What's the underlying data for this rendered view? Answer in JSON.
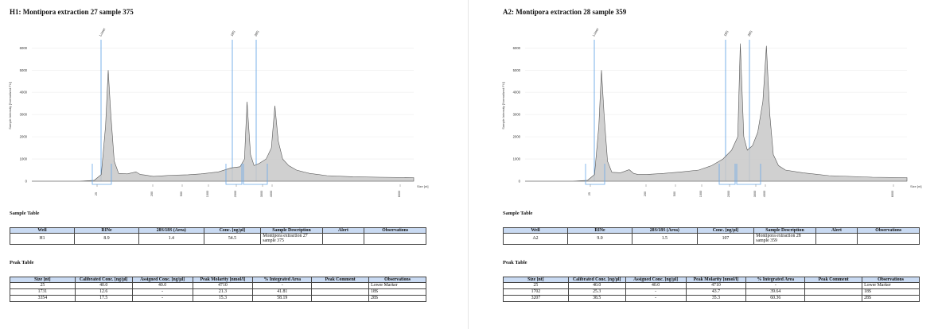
{
  "panels": [
    {
      "title": "H1: Montipora extraction 27 sample 375",
      "sample_table_title": "Sample Table",
      "sample_headers": [
        "Well",
        "RINe",
        "28S/18S (Area)",
        "Conc. [ng/µl]",
        "Sample Description",
        "Alert",
        "Observations"
      ],
      "sample_row": [
        "H1",
        "8.9",
        "1.4",
        "54.5",
        "Montipora extraction 27 sample 375",
        "",
        ""
      ],
      "peak_table_title": "Peak Table",
      "peak_headers": [
        "Size [nt]",
        "Calibrated Conc. [ng/µl]",
        "Assigned Conc. [ng/µl]",
        "Peak Molarity [nmol/l]",
        "% Integrated Area",
        "Peak Comment",
        "Observations"
      ],
      "peak_rows": [
        [
          "25",
          "40.0",
          "40.0",
          "4710",
          "-",
          "",
          "Lower Marker"
        ],
        [
          "1731",
          "12.6",
          "-",
          "21.3",
          "41.81",
          "",
          "18S"
        ],
        [
          "3354",
          "17.5",
          "-",
          "15.3",
          "58.19",
          "",
          "28S"
        ]
      ]
    },
    {
      "title": "A2: Montipora extraction 28 sample 359",
      "sample_table_title": "Sample Table",
      "sample_headers": [
        "Well",
        "RINe",
        "28S/18S (Area)",
        "Conc. [ng/µl]",
        "Sample Description",
        "Alert",
        "Observations"
      ],
      "sample_row": [
        "A2",
        "9.0",
        "1.5",
        "107",
        "Montipora extraction 28 sample 359",
        "",
        ""
      ],
      "peak_table_title": "Peak Table",
      "peak_headers": [
        "Size [nt]",
        "Calibrated Conc. [ng/µl]",
        "Assigned Conc. [ng/µl]",
        "Peak Molarity [nmol/l]",
        "% Integrated Area",
        "Peak Comment",
        "Observations"
      ],
      "peak_rows": [
        [
          "25",
          "40.0",
          "40.0",
          "4710",
          "-",
          "",
          "Lower Marker"
        ],
        [
          "1702",
          "25.3",
          "-",
          "43.7",
          "39.64",
          "",
          "18S"
        ],
        [
          "3207",
          "38.5",
          "-",
          "35.3",
          "60.36",
          "",
          "28S"
        ]
      ]
    }
  ],
  "chart_data": [
    {
      "type": "area",
      "ylabel": "Sample Intensity [Normalized FU]",
      "xlabel": "Size [nt]",
      "ylim": [
        0,
        6800
      ],
      "yticks": [
        "0",
        "1000",
        "2000",
        "3000",
        "4000",
        "5000",
        "6000"
      ],
      "x_ticks": [
        "25",
        "200",
        "500",
        "1000",
        "2000",
        "3000",
        "4000",
        "6000"
      ],
      "peak_labels": [
        "Lower",
        "18S",
        "28S"
      ],
      "color_fill": "#c8c8c8",
      "color_line": "#555555",
      "color_marker": "#6aa8e8",
      "trace": [
        [
          0,
          0
        ],
        [
          55,
          0
        ],
        [
          72,
          40
        ],
        [
          80,
          300
        ],
        [
          85,
          2500
        ],
        [
          88,
          5000
        ],
        [
          91,
          3000
        ],
        [
          95,
          900
        ],
        [
          100,
          350
        ],
        [
          110,
          330
        ],
        [
          120,
          420
        ],
        [
          125,
          300
        ],
        [
          130,
          280
        ],
        [
          140,
          220
        ],
        [
          150,
          240
        ],
        [
          160,
          270
        ],
        [
          180,
          290
        ],
        [
          195,
          330
        ],
        [
          215,
          420
        ],
        [
          230,
          600
        ],
        [
          240,
          650
        ],
        [
          245,
          1000
        ],
        [
          248,
          3580
        ],
        [
          252,
          1200
        ],
        [
          256,
          700
        ],
        [
          262,
          800
        ],
        [
          270,
          1000
        ],
        [
          276,
          1500
        ],
        [
          280,
          3400
        ],
        [
          284,
          1800
        ],
        [
          289,
          1000
        ],
        [
          296,
          700
        ],
        [
          305,
          500
        ],
        [
          320,
          350
        ],
        [
          340,
          250
        ],
        [
          370,
          200
        ],
        [
          400,
          180
        ],
        [
          440,
          160
        ]
      ]
    },
    {
      "type": "area",
      "ylabel": "Sample Intensity [Normalized FU]",
      "xlabel": "Size [nt]",
      "ylim": [
        0,
        6800
      ],
      "yticks": [
        "0",
        "1000",
        "2000",
        "3000",
        "4000",
        "5000",
        "6000"
      ],
      "x_ticks": [
        "25",
        "200",
        "500",
        "1000",
        "2000",
        "3000",
        "4000",
        "6000"
      ],
      "peak_labels": [
        "Lower",
        "18S",
        "28S"
      ],
      "color_fill": "#c8c8c8",
      "color_line": "#555555",
      "color_marker": "#6aa8e8",
      "trace": [
        [
          0,
          0
        ],
        [
          55,
          0
        ],
        [
          72,
          40
        ],
        [
          80,
          300
        ],
        [
          85,
          2500
        ],
        [
          88,
          5000
        ],
        [
          91,
          3000
        ],
        [
          95,
          900
        ],
        [
          100,
          400
        ],
        [
          110,
          380
        ],
        [
          120,
          520
        ],
        [
          125,
          350
        ],
        [
          130,
          300
        ],
        [
          140,
          300
        ],
        [
          160,
          350
        ],
        [
          180,
          420
        ],
        [
          200,
          500
        ],
        [
          215,
          700
        ],
        [
          228,
          1000
        ],
        [
          238,
          1400
        ],
        [
          245,
          2000
        ],
        [
          248,
          6200
        ],
        [
          252,
          2000
        ],
        [
          256,
          1400
        ],
        [
          262,
          1600
        ],
        [
          268,
          2200
        ],
        [
          274,
          3600
        ],
        [
          278,
          6100
        ],
        [
          282,
          3000
        ],
        [
          286,
          1200
        ],
        [
          292,
          700
        ],
        [
          300,
          500
        ],
        [
          320,
          380
        ],
        [
          350,
          250
        ],
        [
          400,
          180
        ],
        [
          440,
          160
        ]
      ]
    }
  ]
}
